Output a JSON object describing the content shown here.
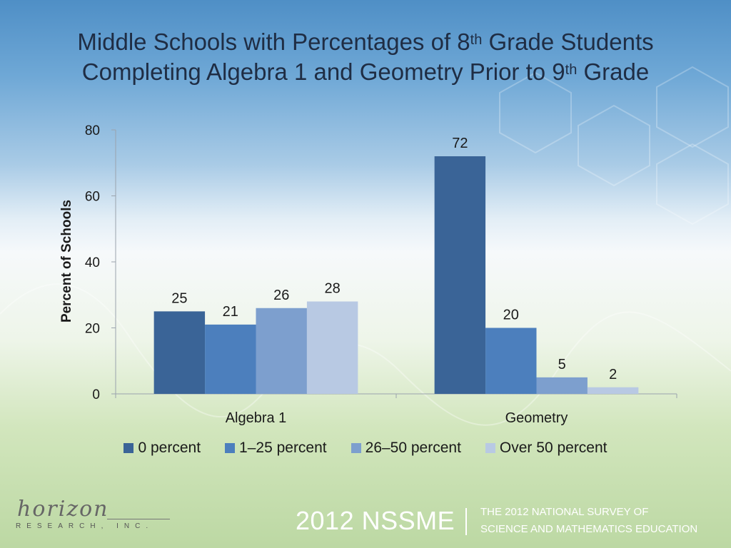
{
  "title": {
    "line1_a": "Middle Schools with Percentages of 8",
    "line1_sup": "th",
    "line1_b": " Grade Students",
    "line2_a": "Completing Algebra 1 and Geometry Prior to 9",
    "line2_sup": "th",
    "line2_b": " Grade"
  },
  "chart_data": {
    "type": "bar",
    "categories": [
      "Algebra 1",
      "Geometry"
    ],
    "series": [
      {
        "name": "0 percent",
        "values": [
          25,
          72
        ],
        "color": "#3a6497"
      },
      {
        "name": "1–25 percent",
        "values": [
          21,
          20
        ],
        "color": "#4c7fbd"
      },
      {
        "name": "26–50 percent",
        "values": [
          26,
          5
        ],
        "color": "#7d9fce"
      },
      {
        "name": "Over 50 percent",
        "values": [
          28,
          2
        ],
        "color": "#b8c9e3"
      }
    ],
    "title": "Middle Schools with Percentages of 8th Grade Students Completing Algebra 1 and Geometry Prior to 9th Grade",
    "xlabel": "",
    "ylabel": "Percent of Schools",
    "ylim": [
      0,
      80
    ],
    "yticks": [
      0,
      20,
      40,
      60,
      80
    ],
    "grid": false,
    "legend": "bottom"
  },
  "footer": {
    "logo_script": "horizon",
    "logo_sub": "RESEARCH, INC.",
    "survey_short": "2012 NSSME",
    "survey_line1": "THE 2012 NATIONAL SURVEY OF",
    "survey_line2": "SCIENCE AND MATHEMATICS EDUCATION"
  }
}
